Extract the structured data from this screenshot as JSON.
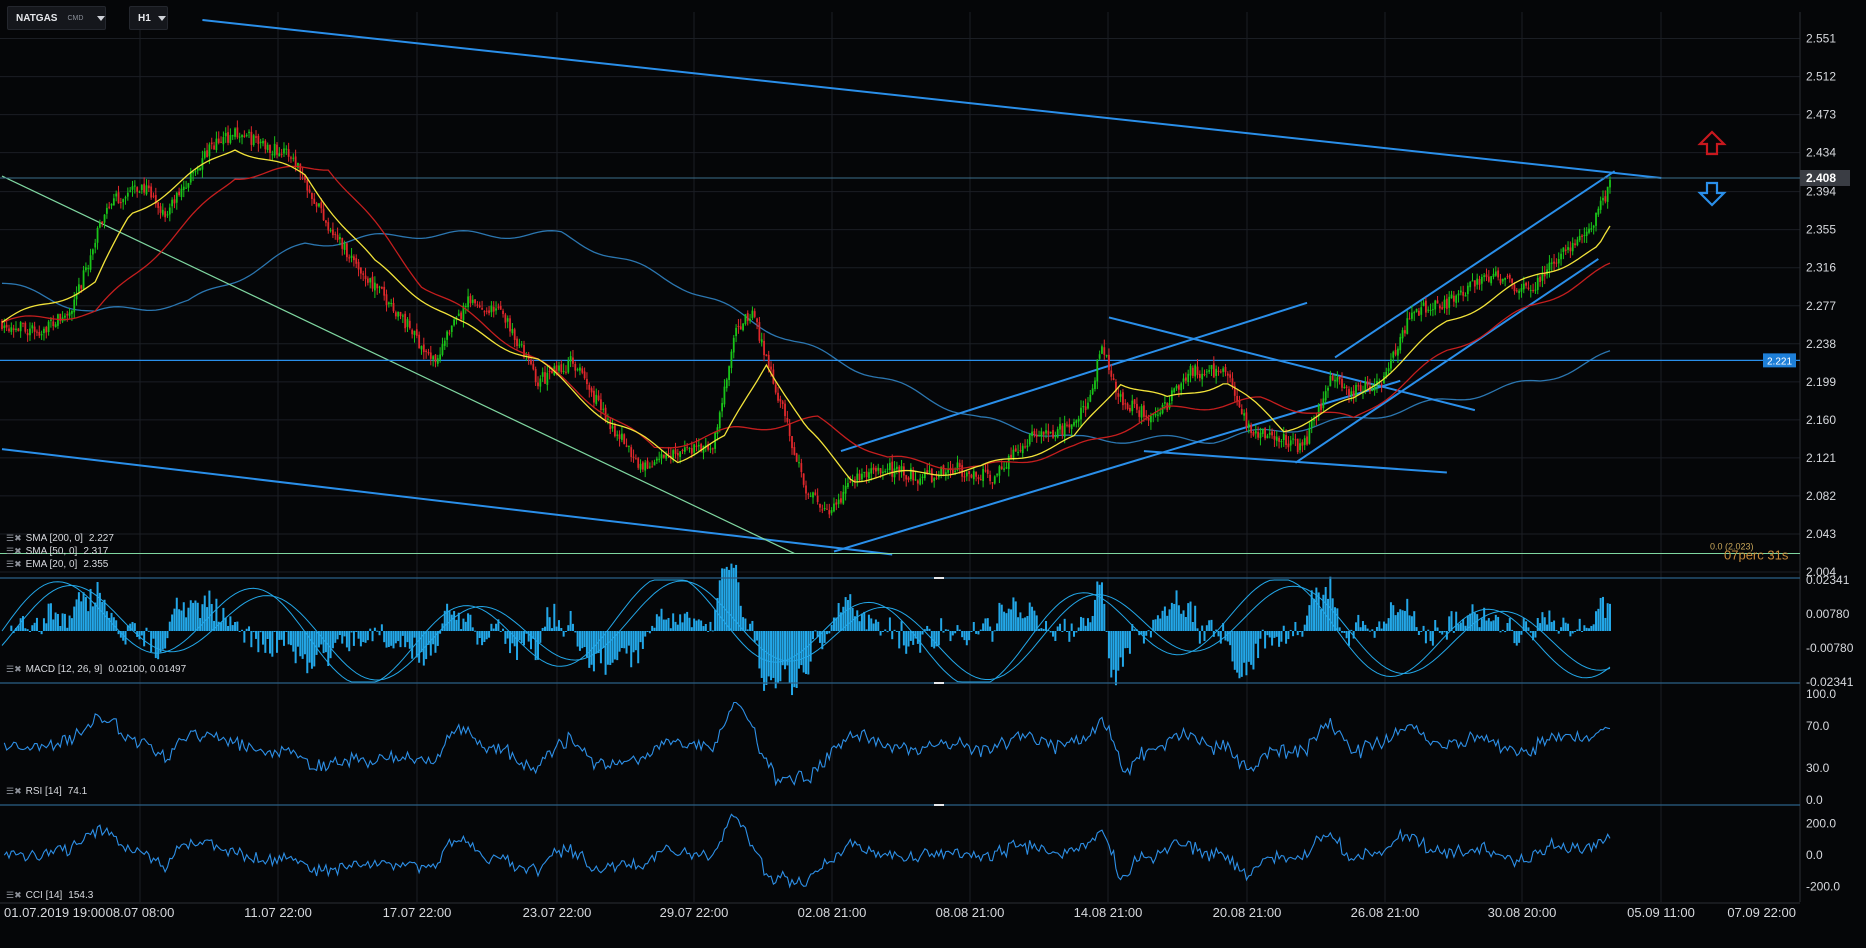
{
  "toolbar": {
    "symbol": "NATGAS",
    "symbol_type": "CMD",
    "timeframe": "H1"
  },
  "indicators": {
    "sma200": {
      "name": "SMA [200, 0]",
      "value": "2.227"
    },
    "sma50": {
      "name": "SMA [50, 0]",
      "value": "2.317"
    },
    "ema20": {
      "name": "EMA [20, 0]",
      "value": "2.355"
    },
    "macd": {
      "name": "MACD [12, 26, 9]",
      "value": "0.02100, 0.01497"
    },
    "rsi": {
      "name": "RSI [14]",
      "value": "74.1"
    },
    "cci": {
      "name": "CCI [14]",
      "value": "154.3"
    }
  },
  "overlay_text": {
    "fib_label": "0.0 (2.023)",
    "countdown": "07perc 31s"
  },
  "colors": {
    "background": "#050608",
    "grid": "#1b1e24",
    "up_candle": "#19c419",
    "down_candle": "#e0282c",
    "ema20": "#f2e33a",
    "sma50": "#c41e1e",
    "sma200": "#2b76b0",
    "trendline": "#2a8fea",
    "green_trendline": "#7fd6a0",
    "macd_hist": "#23a7e8",
    "oscillator": "#2d8fe6",
    "arrow_up": "#c8181e",
    "arrow_down": "#2a8fea",
    "price_badge": "#3a3d44",
    "level_badge": "#1e7fd8"
  },
  "chart_data": [
    {
      "type": "candlestick",
      "title": "NATGAS H1",
      "x_tick_labels": [
        "01.07.2019 19:00",
        "08.07 08:00",
        "11.07 22:00",
        "17.07 22:00",
        "23.07 22:00",
        "29.07 22:00",
        "02.08 21:00",
        "08.08 21:00",
        "14.08 21:00",
        "20.08 21:00",
        "26.08 21:00",
        "30.08 20:00",
        "05.09 11:00",
        "07.09 22:00"
      ],
      "y_ticks": [
        "2.551",
        "2.512",
        "2.473",
        "2.434",
        "2.394",
        "2.355",
        "2.316",
        "2.277",
        "2.238",
        "2.199",
        "2.160",
        "2.121",
        "2.082",
        "2.043",
        "2.004"
      ],
      "ylim": [
        2.004,
        2.57
      ],
      "last_price": 2.408,
      "horizontal_level": 2.221,
      "fib_level": 2.023,
      "close_path": [
        {
          "i": 0,
          "v": 2.26
        },
        {
          "i": 15,
          "v": 2.25
        },
        {
          "i": 30,
          "v": 2.27
        },
        {
          "i": 45,
          "v": 2.38
        },
        {
          "i": 60,
          "v": 2.4
        },
        {
          "i": 70,
          "v": 2.37
        },
        {
          "i": 90,
          "v": 2.44
        },
        {
          "i": 100,
          "v": 2.455
        },
        {
          "i": 115,
          "v": 2.44
        },
        {
          "i": 125,
          "v": 2.43
        },
        {
          "i": 140,
          "v": 2.36
        },
        {
          "i": 155,
          "v": 2.31
        },
        {
          "i": 170,
          "v": 2.27
        },
        {
          "i": 185,
          "v": 2.22
        },
        {
          "i": 200,
          "v": 2.28
        },
        {
          "i": 215,
          "v": 2.27
        },
        {
          "i": 230,
          "v": 2.2
        },
        {
          "i": 245,
          "v": 2.22
        },
        {
          "i": 260,
          "v": 2.16
        },
        {
          "i": 275,
          "v": 2.11
        },
        {
          "i": 290,
          "v": 2.13
        },
        {
          "i": 305,
          "v": 2.13
        },
        {
          "i": 315,
          "v": 2.25
        },
        {
          "i": 322,
          "v": 2.27
        },
        {
          "i": 330,
          "v": 2.21
        },
        {
          "i": 345,
          "v": 2.09
        },
        {
          "i": 355,
          "v": 2.06
        },
        {
          "i": 365,
          "v": 2.1
        },
        {
          "i": 380,
          "v": 2.11
        },
        {
          "i": 395,
          "v": 2.1
        },
        {
          "i": 410,
          "v": 2.11
        },
        {
          "i": 425,
          "v": 2.1
        },
        {
          "i": 440,
          "v": 2.14
        },
        {
          "i": 455,
          "v": 2.15
        },
        {
          "i": 467,
          "v": 2.18
        },
        {
          "i": 472,
          "v": 2.24
        },
        {
          "i": 480,
          "v": 2.18
        },
        {
          "i": 495,
          "v": 2.16
        },
        {
          "i": 510,
          "v": 2.21
        },
        {
          "i": 525,
          "v": 2.21
        },
        {
          "i": 535,
          "v": 2.15
        },
        {
          "i": 550,
          "v": 2.14
        },
        {
          "i": 558,
          "v": 2.13
        },
        {
          "i": 570,
          "v": 2.2
        },
        {
          "i": 580,
          "v": 2.19
        },
        {
          "i": 592,
          "v": 2.2
        },
        {
          "i": 605,
          "v": 2.27
        },
        {
          "i": 620,
          "v": 2.28
        },
        {
          "i": 640,
          "v": 2.31
        },
        {
          "i": 655,
          "v": 2.29
        },
        {
          "i": 668,
          "v": 2.33
        },
        {
          "i": 680,
          "v": 2.35
        },
        {
          "i": 690,
          "v": 2.4
        }
      ],
      "moving_averages": {
        "ema20": [
          {
            "i": 0,
            "v": 2.26
          },
          {
            "i": 40,
            "v": 2.3
          },
          {
            "i": 55,
            "v": 2.37
          },
          {
            "i": 100,
            "v": 2.44
          },
          {
            "i": 130,
            "v": 2.41
          },
          {
            "i": 160,
            "v": 2.32
          },
          {
            "i": 195,
            "v": 2.26
          },
          {
            "i": 230,
            "v": 2.22
          },
          {
            "i": 260,
            "v": 2.16
          },
          {
            "i": 290,
            "v": 2.12
          },
          {
            "i": 310,
            "v": 2.14
          },
          {
            "i": 328,
            "v": 2.22
          },
          {
            "i": 345,
            "v": 2.15
          },
          {
            "i": 365,
            "v": 2.1
          },
          {
            "i": 420,
            "v": 2.11
          },
          {
            "i": 460,
            "v": 2.14
          },
          {
            "i": 480,
            "v": 2.2
          },
          {
            "i": 500,
            "v": 2.18
          },
          {
            "i": 525,
            "v": 2.2
          },
          {
            "i": 550,
            "v": 2.15
          },
          {
            "i": 580,
            "v": 2.18
          },
          {
            "i": 620,
            "v": 2.26
          },
          {
            "i": 660,
            "v": 2.31
          },
          {
            "i": 685,
            "v": 2.335
          },
          {
            "i": 690,
            "v": 2.355
          }
        ],
        "sma50": [
          {
            "i": 0,
            "v": 2.26
          },
          {
            "i": 40,
            "v": 2.27
          },
          {
            "i": 100,
            "v": 2.41
          },
          {
            "i": 140,
            "v": 2.42
          },
          {
            "i": 180,
            "v": 2.3
          },
          {
            "i": 230,
            "v": 2.22
          },
          {
            "i": 280,
            "v": 2.13
          },
          {
            "i": 315,
            "v": 2.15
          },
          {
            "i": 350,
            "v": 2.16
          },
          {
            "i": 380,
            "v": 2.12
          },
          {
            "i": 420,
            "v": 2.11
          },
          {
            "i": 460,
            "v": 2.13
          },
          {
            "i": 500,
            "v": 2.17
          },
          {
            "i": 540,
            "v": 2.18
          },
          {
            "i": 580,
            "v": 2.16
          },
          {
            "i": 620,
            "v": 2.23
          },
          {
            "i": 660,
            "v": 2.28
          },
          {
            "i": 690,
            "v": 2.317
          }
        ],
        "sma200": [
          {
            "i": 0,
            "v": 2.3
          },
          {
            "i": 40,
            "v": 2.27
          },
          {
            "i": 80,
            "v": 2.28
          },
          {
            "i": 130,
            "v": 2.34
          },
          {
            "i": 175,
            "v": 2.35
          },
          {
            "i": 240,
            "v": 2.35
          },
          {
            "i": 290,
            "v": 2.3
          },
          {
            "i": 340,
            "v": 2.24
          },
          {
            "i": 380,
            "v": 2.2
          },
          {
            "i": 420,
            "v": 2.16
          },
          {
            "i": 460,
            "v": 2.14
          },
          {
            "i": 520,
            "v": 2.14
          },
          {
            "i": 580,
            "v": 2.16
          },
          {
            "i": 620,
            "v": 2.18
          },
          {
            "i": 660,
            "v": 2.2
          },
          {
            "i": 690,
            "v": 2.227
          }
        ]
      },
      "trendlines": [
        {
          "name": "long-downtrend-resistance",
          "from": {
            "i": 86,
            "v": 2.57
          },
          "to": {
            "i": 712,
            "v": 2.408
          }
        },
        {
          "name": "descending-support",
          "from": {
            "i": 0,
            "v": 2.13
          },
          "to": {
            "i": 382,
            "v": 2.022
          }
        },
        {
          "name": "green-diagonal",
          "from": {
            "i": 0,
            "v": 2.41
          },
          "to": {
            "i": 340,
            "v": 2.023
          }
        },
        {
          "name": "channel1-lower",
          "from": {
            "i": 357,
            "v": 2.025
          },
          "to": {
            "i": 600,
            "v": 2.2
          }
        },
        {
          "name": "channel1-upper",
          "from": {
            "i": 360,
            "v": 2.128
          },
          "to": {
            "i": 560,
            "v": 2.28
          }
        },
        {
          "name": "wedge-upper",
          "from": {
            "i": 475,
            "v": 2.265
          },
          "to": {
            "i": 632,
            "v": 2.17
          }
        },
        {
          "name": "wedge-lower",
          "from": {
            "i": 490,
            "v": 2.128
          },
          "to": {
            "i": 620,
            "v": 2.106
          }
        },
        {
          "name": "channel2-lower",
          "from": {
            "i": 555,
            "v": 2.116
          },
          "to": {
            "i": 685,
            "v": 2.325
          }
        },
        {
          "name": "channel2-upper",
          "from": {
            "i": 572,
            "v": 2.224
          },
          "to": {
            "i": 692,
            "v": 2.415
          }
        }
      ]
    },
    {
      "type": "bar",
      "name": "MACD",
      "y_ticks": [
        "0.02341",
        "0.00780",
        "-0.00780",
        "-0.02341"
      ],
      "ylim": [
        -0.02341,
        0.02341
      ],
      "latest": {
        "macd": 0.021,
        "signal": 0.01497
      }
    },
    {
      "type": "line",
      "name": "RSI",
      "y_ticks": [
        "100.0",
        "70.0",
        "30.0",
        "0.0"
      ],
      "ylim": [
        0,
        100
      ],
      "latest": 74.1
    },
    {
      "type": "line",
      "name": "CCI",
      "y_ticks": [
        "200.0",
        "0.0",
        "-200.0"
      ],
      "ylim": [
        -300,
        300
      ],
      "latest": 154.3
    }
  ]
}
